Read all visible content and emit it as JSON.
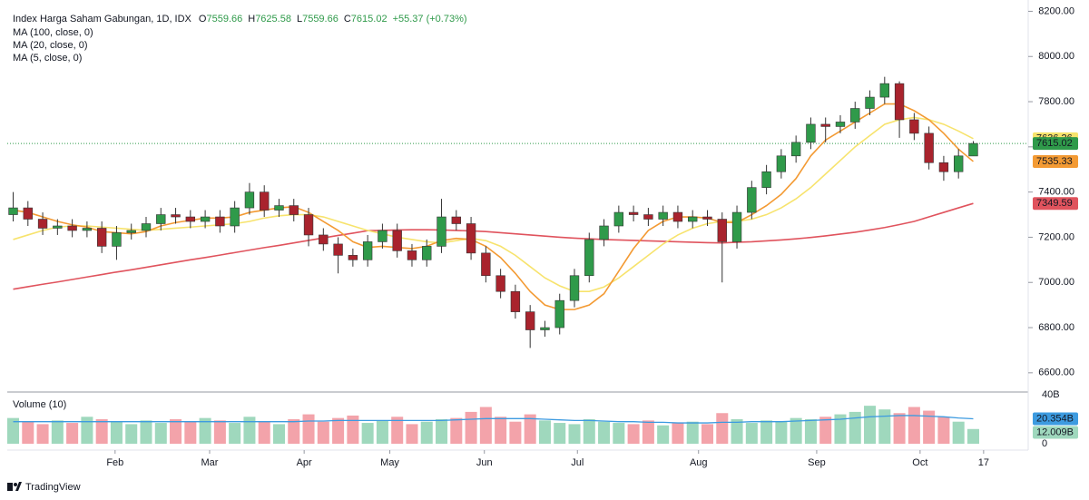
{
  "chart_data": {
    "type": "candlestick",
    "title": "Index Harga Saham Gabungan, 1D, IDX",
    "ohlc_letters": [
      "O",
      "H",
      "L",
      "C"
    ],
    "change": "+55.37 (+0.73%)",
    "up_color": "#2f9a4a",
    "down_color": "#a9232d",
    "open": [
      7300,
      7330,
      7280,
      7240,
      7250,
      7230,
      7240,
      7160,
      7220,
      7230,
      7260,
      7300,
      7290,
      7270,
      7290,
      7250,
      7330,
      7400,
      7320,
      7340,
      7300,
      7210,
      7170,
      7120,
      7100,
      7180,
      7230,
      7140,
      7100,
      7160,
      7290,
      7260,
      7130,
      7030,
      6960,
      6870,
      6790,
      6800,
      6920,
      7030,
      7190,
      7250,
      7310,
      7300,
      7280,
      7310,
      7270,
      7290,
      7280,
      7180,
      7310,
      7420,
      7490,
      7560,
      7620,
      7700,
      7690,
      7710,
      7770,
      7820,
      7880,
      7720,
      7660,
      7530,
      7490,
      7559.66
    ],
    "high": [
      7400,
      7360,
      7310,
      7280,
      7280,
      7270,
      7270,
      7250,
      7260,
      7290,
      7330,
      7330,
      7320,
      7320,
      7320,
      7360,
      7440,
      7430,
      7370,
      7370,
      7330,
      7240,
      7200,
      7150,
      7210,
      7260,
      7260,
      7170,
      7190,
      7370,
      7320,
      7290,
      7160,
      7060,
      6990,
      6900,
      6830,
      6950,
      7060,
      7220,
      7280,
      7340,
      7340,
      7330,
      7340,
      7340,
      7320,
      7320,
      7310,
      7340,
      7450,
      7520,
      7590,
      7650,
      7730,
      7730,
      7740,
      7800,
      7850,
      7910,
      7890,
      7750,
      7690,
      7560,
      7590,
      7625.58
    ],
    "low": [
      7270,
      7250,
      7210,
      7210,
      7200,
      7200,
      7130,
      7100,
      7190,
      7200,
      7230,
      7260,
      7240,
      7240,
      7220,
      7220,
      7300,
      7290,
      7290,
      7270,
      7160,
      7140,
      7040,
      7070,
      7070,
      7150,
      7110,
      7070,
      7070,
      7130,
      7230,
      7100,
      7000,
      6930,
      6840,
      6710,
      6760,
      6770,
      6890,
      7000,
      7160,
      7220,
      7270,
      7250,
      7250,
      7240,
      7240,
      7250,
      7000,
      7150,
      7280,
      7390,
      7460,
      7530,
      7590,
      7620,
      7660,
      7680,
      7740,
      7790,
      7640,
      7630,
      7500,
      7450,
      7460,
      7559.66
    ],
    "close": [
      7330,
      7280,
      7240,
      7250,
      7230,
      7240,
      7160,
      7220,
      7230,
      7260,
      7300,
      7290,
      7270,
      7290,
      7250,
      7330,
      7400,
      7320,
      7340,
      7300,
      7210,
      7170,
      7120,
      7100,
      7180,
      7230,
      7140,
      7100,
      7160,
      7290,
      7260,
      7130,
      7030,
      6960,
      6870,
      6790,
      6800,
      6920,
      7030,
      7190,
      7250,
      7310,
      7300,
      7280,
      7310,
      7270,
      7290,
      7280,
      7180,
      7310,
      7420,
      7490,
      7560,
      7620,
      7700,
      7690,
      7710,
      7770,
      7820,
      7880,
      7720,
      7660,
      7530,
      7490,
      7560,
      7615.02
    ],
    "series": [
      {
        "name": "MA (100, close, 0)",
        "color": "#e0535d",
        "text_color": "#ffffff",
        "values": [
          6970,
          6981,
          6992,
          7002,
          7013,
          7024,
          7035,
          7046,
          7056,
          7067,
          7078,
          7089,
          7100,
          7110,
          7121,
          7132,
          7143,
          7154,
          7164,
          7175,
          7186,
          7197,
          7208,
          7218,
          7229,
          7230,
          7232,
          7233,
          7233,
          7232,
          7230,
          7228,
          7225,
          7220,
          7215,
          7210,
          7205,
          7200,
          7196,
          7193,
          7190,
          7188,
          7186,
          7184,
          7182,
          7180,
          7178,
          7176,
          7175,
          7178,
          7180,
          7184,
          7188,
          7193,
          7199,
          7206,
          7214,
          7222,
          7232,
          7243,
          7256,
          7270,
          7290,
          7310,
          7330,
          7349.59
        ]
      },
      {
        "name": "MA (20, close, 0)",
        "color": "#f7e36d",
        "text_color": "#131722",
        "values": [
          7190,
          7210,
          7230,
          7245,
          7250,
          7250,
          7245,
          7240,
          7235,
          7230,
          7235,
          7240,
          7245,
          7250,
          7255,
          7260,
          7270,
          7285,
          7295,
          7300,
          7300,
          7290,
          7270,
          7250,
          7230,
          7215,
          7200,
          7190,
          7180,
          7175,
          7185,
          7195,
          7185,
          7160,
          7120,
          7070,
          7020,
          6985,
          6960,
          6960,
          6980,
          7020,
          7070,
          7120,
          7170,
          7210,
          7240,
          7260,
          7270,
          7270,
          7280,
          7300,
          7330,
          7370,
          7420,
          7480,
          7540,
          7600,
          7650,
          7700,
          7720,
          7730,
          7720,
          7700,
          7670,
          7636.26
        ]
      },
      {
        "name": "MA (5, close, 0)",
        "color": "#f39a33",
        "text_color": "#131722",
        "values": [
          7320,
          7310,
          7290,
          7270,
          7255,
          7245,
          7225,
          7220,
          7215,
          7225,
          7250,
          7265,
          7275,
          7285,
          7285,
          7290,
          7310,
          7320,
          7330,
          7335,
          7310,
          7270,
          7230,
          7180,
          7155,
          7160,
          7155,
          7150,
          7160,
          7185,
          7195,
          7190,
          7160,
          7110,
          7040,
          6960,
          6900,
          6880,
          6880,
          6900,
          6950,
          7050,
          7150,
          7230,
          7270,
          7290,
          7290,
          7285,
          7265,
          7265,
          7300,
          7340,
          7390,
          7460,
          7560,
          7630,
          7670,
          7710,
          7750,
          7790,
          7790,
          7760,
          7720,
          7660,
          7590,
          7535.33
        ]
      }
    ],
    "ylim": [
      6515,
      8250
    ],
    "yticks": [
      {
        "value": 6600,
        "label": "6600.00"
      },
      {
        "value": 6800,
        "label": "6800.00"
      },
      {
        "value": 7000,
        "label": "7000.00"
      },
      {
        "value": 7200,
        "label": "7200.00"
      },
      {
        "value": 7400,
        "label": "7400.00"
      },
      {
        "value": 7600,
        "label": "7600.00"
      },
      {
        "value": 7800,
        "label": "7800.00"
      },
      {
        "value": 8000,
        "label": "8000.00"
      },
      {
        "value": 8200,
        "label": "8200.00"
      }
    ],
    "xlim": [
      -0.4,
      66.2
    ],
    "xticks": [
      {
        "value": 6.9,
        "label": "Feb"
      },
      {
        "value": 13.3,
        "label": "Mar"
      },
      {
        "value": 19.7,
        "label": "Apr"
      },
      {
        "value": 25.5,
        "label": "May"
      },
      {
        "value": 31.9,
        "label": "Jun"
      },
      {
        "value": 38.2,
        "label": "Jul"
      },
      {
        "value": 46.4,
        "label": "Aug"
      },
      {
        "value": 54.4,
        "label": "Sep"
      },
      {
        "value": 61.4,
        "label": "Oct"
      },
      {
        "value": 65.7,
        "label": "17"
      }
    ],
    "volume": {
      "title": "Volume (10)",
      "up_color": "#9fd8bd",
      "down_color": "#f3a3aa",
      "ma_color": "#3d9be0",
      "values": [
        21,
        18,
        16,
        19,
        17,
        22,
        20,
        18,
        16,
        19,
        17,
        20,
        18,
        21,
        19,
        17,
        22,
        18,
        16,
        20,
        24,
        18,
        21,
        23,
        17,
        19,
        22,
        16,
        18,
        20,
        21,
        26,
        30,
        22,
        18,
        24,
        19,
        17,
        16,
        20,
        18,
        17,
        16,
        19,
        15,
        17,
        18,
        16,
        25,
        20,
        17,
        19,
        18,
        21,
        20,
        22,
        24,
        26,
        31,
        28,
        25,
        30,
        27,
        22,
        18,
        12.009
      ],
      "ma": [
        18,
        18,
        18,
        18,
        18,
        18,
        18,
        18,
        18,
        18,
        18,
        18,
        18,
        18,
        18,
        18,
        18,
        18,
        18,
        18,
        18.5,
        18.5,
        19,
        19,
        19,
        19,
        19,
        19,
        19,
        19,
        19.5,
        20,
        20.5,
        20.5,
        20.5,
        20.5,
        20,
        19.5,
        19,
        19,
        18.5,
        18,
        18,
        17.5,
        17.5,
        17,
        17,
        17,
        17.5,
        17.5,
        18,
        18,
        18,
        18.5,
        19,
        19.5,
        20,
        21,
        22,
        22.5,
        23,
        23,
        22.5,
        22,
        21,
        20.354
      ],
      "value_label": "12.009B",
      "ma_label": "20.354B",
      "ylim": [
        0,
        40
      ],
      "yticks": [
        {
          "value": 0,
          "label": "0"
        },
        {
          "value": 40,
          "label": "40B"
        }
      ]
    },
    "brand": "TradingView"
  }
}
